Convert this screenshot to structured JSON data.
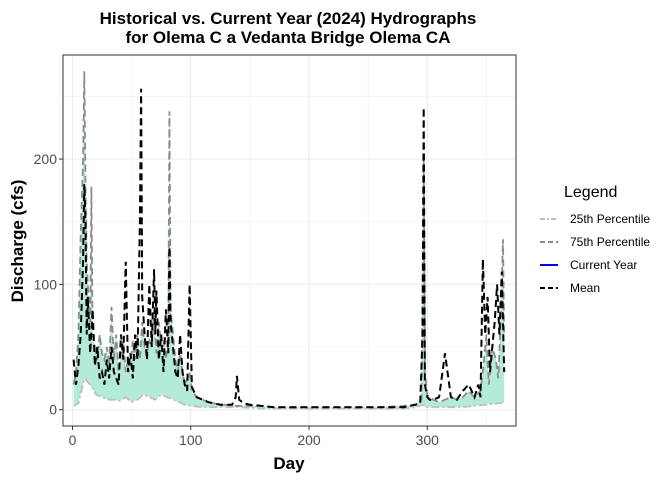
{
  "chart_data": {
    "type": "line",
    "title_line1": "Historical vs. Current Year (2024) Hydrographs",
    "title_line2": "for Olema C a Vedanta Bridge Olema CA",
    "xlabel": "Day",
    "ylabel": "Discharge (cfs)",
    "xlim": [
      -8,
      375
    ],
    "ylim": [
      -13,
      283
    ],
    "x_ticks": [
      0,
      100,
      200,
      300
    ],
    "y_ticks": [
      0,
      100,
      200
    ],
    "grid": true,
    "legend": {
      "title": "Legend",
      "placement": "right",
      "entries": [
        {
          "label": "25th Percentile",
          "color": "#bfbfbf",
          "dash": "dashdot"
        },
        {
          "label": "75th Percentile",
          "color": "#8c8c8c",
          "dash": "dashed"
        },
        {
          "label": "Current Year",
          "color": "#0000ff",
          "dash": "solid"
        },
        {
          "label": "Mean",
          "color": "#000000",
          "dash": "dashed"
        }
      ]
    },
    "band": {
      "name": "25th–75th percentile range",
      "color": "#b3ead9"
    },
    "series": [
      {
        "name": "Mean",
        "color": "#000000",
        "x": [
          1,
          3,
          5,
          7,
          9,
          10,
          11,
          12,
          13,
          15,
          17,
          19,
          21,
          23,
          25,
          27,
          29,
          31,
          33,
          35,
          37,
          39,
          41,
          43,
          45,
          47,
          49,
          51,
          53,
          55,
          57,
          58,
          59,
          61,
          63,
          65,
          67,
          69,
          70,
          71,
          73,
          75,
          77,
          79,
          81,
          82,
          83,
          85,
          87,
          89,
          91,
          93,
          95,
          97,
          99,
          101,
          105,
          110,
          115,
          120,
          125,
          130,
          135,
          138,
          139,
          141,
          145,
          150,
          160,
          170,
          180,
          190,
          200,
          220,
          240,
          260,
          280,
          290,
          294,
          296,
          297,
          298,
          300,
          302,
          305,
          310,
          315,
          320,
          325,
          330,
          335,
          340,
          343,
          345,
          347,
          349,
          351,
          353,
          355,
          357,
          359,
          361,
          363,
          365
        ],
        "y": [
          40,
          20,
          35,
          60,
          120,
          180,
          150,
          60,
          90,
          45,
          80,
          35,
          50,
          25,
          30,
          20,
          40,
          25,
          50,
          30,
          25,
          20,
          60,
          40,
          118,
          30,
          45,
          25,
          60,
          40,
          150,
          256,
          90,
          60,
          40,
          100,
          50,
          112,
          60,
          95,
          40,
          60,
          30,
          80,
          45,
          130,
          70,
          50,
          30,
          25,
          60,
          30,
          20,
          15,
          100,
          18,
          10,
          8,
          6,
          5,
          4,
          4,
          4,
          10,
          27,
          8,
          5,
          4,
          3,
          2,
          2,
          2,
          2,
          2,
          2,
          2,
          2,
          4,
          5,
          60,
          241,
          20,
          10,
          8,
          8,
          10,
          45,
          10,
          8,
          15,
          20,
          10,
          20,
          10,
          120,
          60,
          90,
          30,
          50,
          70,
          100,
          60,
          110,
          30
        ]
      },
      {
        "name": "75th Percentile",
        "color": "#8c8c8c",
        "x": [
          1,
          3,
          5,
          7,
          9,
          10,
          11,
          12,
          13,
          15,
          16,
          17,
          19,
          21,
          23,
          25,
          27,
          29,
          31,
          33,
          35,
          37,
          39,
          41,
          43,
          45,
          47,
          49,
          51,
          53,
          55,
          57,
          59,
          61,
          63,
          65,
          67,
          69,
          71,
          73,
          75,
          77,
          79,
          81,
          82,
          83,
          85,
          87,
          89,
          91,
          93,
          95,
          97,
          99,
          101,
          105,
          110,
          115,
          120,
          125,
          130,
          135,
          140,
          150,
          160,
          170,
          180,
          190,
          200,
          220,
          240,
          260,
          280,
          290,
          295,
          297,
          298,
          300,
          302,
          305,
          310,
          315,
          320,
          325,
          330,
          335,
          340,
          345,
          348,
          350,
          352,
          355,
          358,
          360,
          362,
          364,
          365
        ],
        "y": [
          20,
          30,
          60,
          140,
          200,
          270,
          180,
          120,
          100,
          70,
          178,
          60,
          50,
          40,
          60,
          45,
          40,
          50,
          35,
          82,
          40,
          60,
          30,
          45,
          55,
          30,
          40,
          35,
          55,
          40,
          60,
          40,
          70,
          50,
          45,
          55,
          50,
          80,
          45,
          70,
          50,
          55,
          40,
          60,
          238,
          80,
          60,
          40,
          30,
          45,
          30,
          20,
          25,
          30,
          15,
          10,
          8,
          6,
          5,
          4,
          4,
          3,
          3,
          3,
          3,
          2,
          2,
          2,
          2,
          2,
          2,
          2,
          3,
          4,
          8,
          200,
          30,
          12,
          10,
          8,
          6,
          8,
          10,
          8,
          10,
          15,
          10,
          15,
          40,
          60,
          20,
          50,
          40,
          25,
          70,
          136,
          60
        ]
      },
      {
        "name": "25th Percentile",
        "color": "#bfbfbf",
        "x": [
          1,
          5,
          10,
          15,
          20,
          25,
          30,
          35,
          40,
          45,
          50,
          55,
          60,
          65,
          70,
          75,
          80,
          85,
          90,
          95,
          100,
          110,
          120,
          140,
          160,
          180,
          200,
          240,
          280,
          290,
          297,
          298,
          300,
          310,
          320,
          330,
          340,
          350,
          360,
          365
        ],
        "y": [
          3,
          5,
          25,
          20,
          12,
          10,
          8,
          8,
          7,
          10,
          6,
          8,
          12,
          10,
          8,
          12,
          10,
          8,
          6,
          4,
          3,
          2,
          2,
          2,
          1,
          1,
          1,
          1,
          1,
          2,
          4,
          2,
          2,
          2,
          2,
          2,
          3,
          4,
          5,
          6
        ]
      },
      {
        "name": "Current Year",
        "color": "#0000ff",
        "x": [],
        "y": []
      }
    ]
  }
}
